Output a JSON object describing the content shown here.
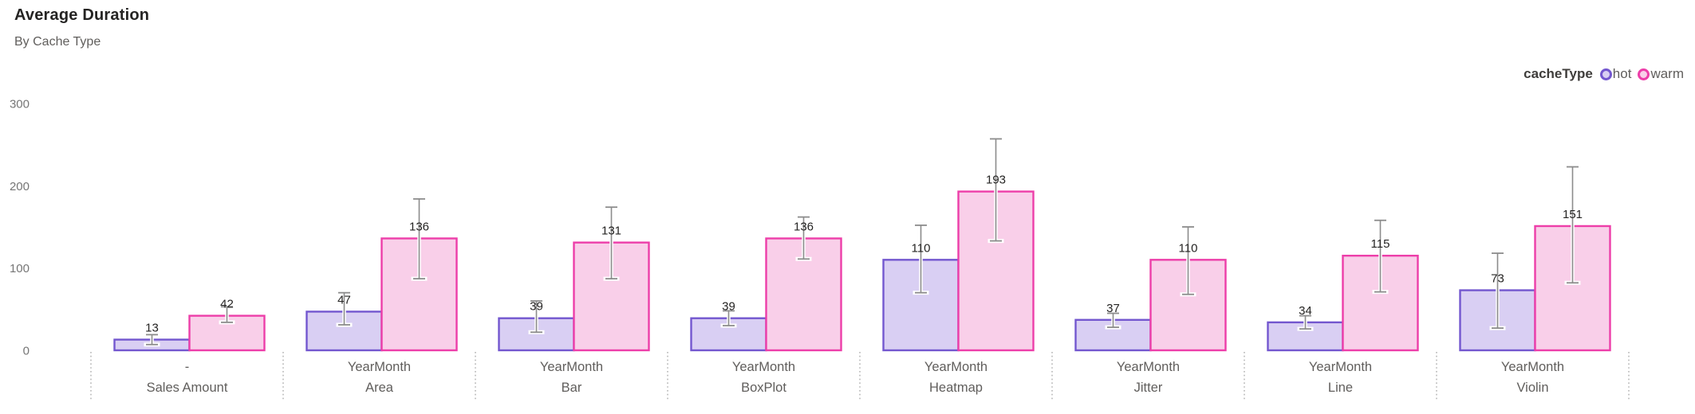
{
  "header": {
    "title": "Average Duration",
    "subtitle": "By Cache Type"
  },
  "legend": {
    "title": "cacheType",
    "items": [
      {
        "label": "hot",
        "ring": "#7357CF",
        "fill": "#D9CFF3"
      },
      {
        "label": "warm",
        "ring": "#ED3EA9",
        "fill": "#F9CFE9"
      }
    ]
  },
  "chart_data": {
    "type": "bar",
    "title": "Average Duration",
    "subtitle": "By Cache Type",
    "legend_title": "cacheType",
    "legend_position": "top-right",
    "grid": false,
    "ylim": [
      0,
      300
    ],
    "y_ticks": [
      0,
      100,
      200,
      300
    ],
    "categories": [
      {
        "line1": "-",
        "line2": "Sales Amount"
      },
      {
        "line1": "YearMonth",
        "line2": "Area"
      },
      {
        "line1": "YearMonth",
        "line2": "Bar"
      },
      {
        "line1": "YearMonth",
        "line2": "BoxPlot"
      },
      {
        "line1": "YearMonth",
        "line2": "Heatmap"
      },
      {
        "line1": "YearMonth",
        "line2": "Jitter"
      },
      {
        "line1": "YearMonth",
        "line2": "Line"
      },
      {
        "line1": "YearMonth",
        "line2": "Violin"
      }
    ],
    "series": [
      {
        "name": "hot",
        "fill": "#D9CFF3",
        "stroke": "#7357CF",
        "values": [
          13,
          47,
          39,
          39,
          110,
          37,
          34,
          73
        ],
        "error_low": [
          7,
          31,
          22,
          30,
          70,
          28,
          26,
          27
        ],
        "error_high": [
          19,
          70,
          60,
          48,
          152,
          45,
          42,
          118
        ]
      },
      {
        "name": "warm",
        "fill": "#F9CFE9",
        "stroke": "#ED3EA9",
        "values": [
          42,
          136,
          131,
          136,
          193,
          110,
          115,
          151
        ],
        "error_low": [
          34,
          87,
          87,
          111,
          133,
          68,
          71,
          82
        ],
        "error_high": [
          53,
          184,
          174,
          162,
          257,
          150,
          158,
          223
        ]
      }
    ],
    "error_bar_color": "#8c8c8c",
    "value_label_color": "#252423",
    "axis_label_color": "#767676",
    "category_label_color": "#605e5c",
    "separator_color": "#ababab"
  }
}
